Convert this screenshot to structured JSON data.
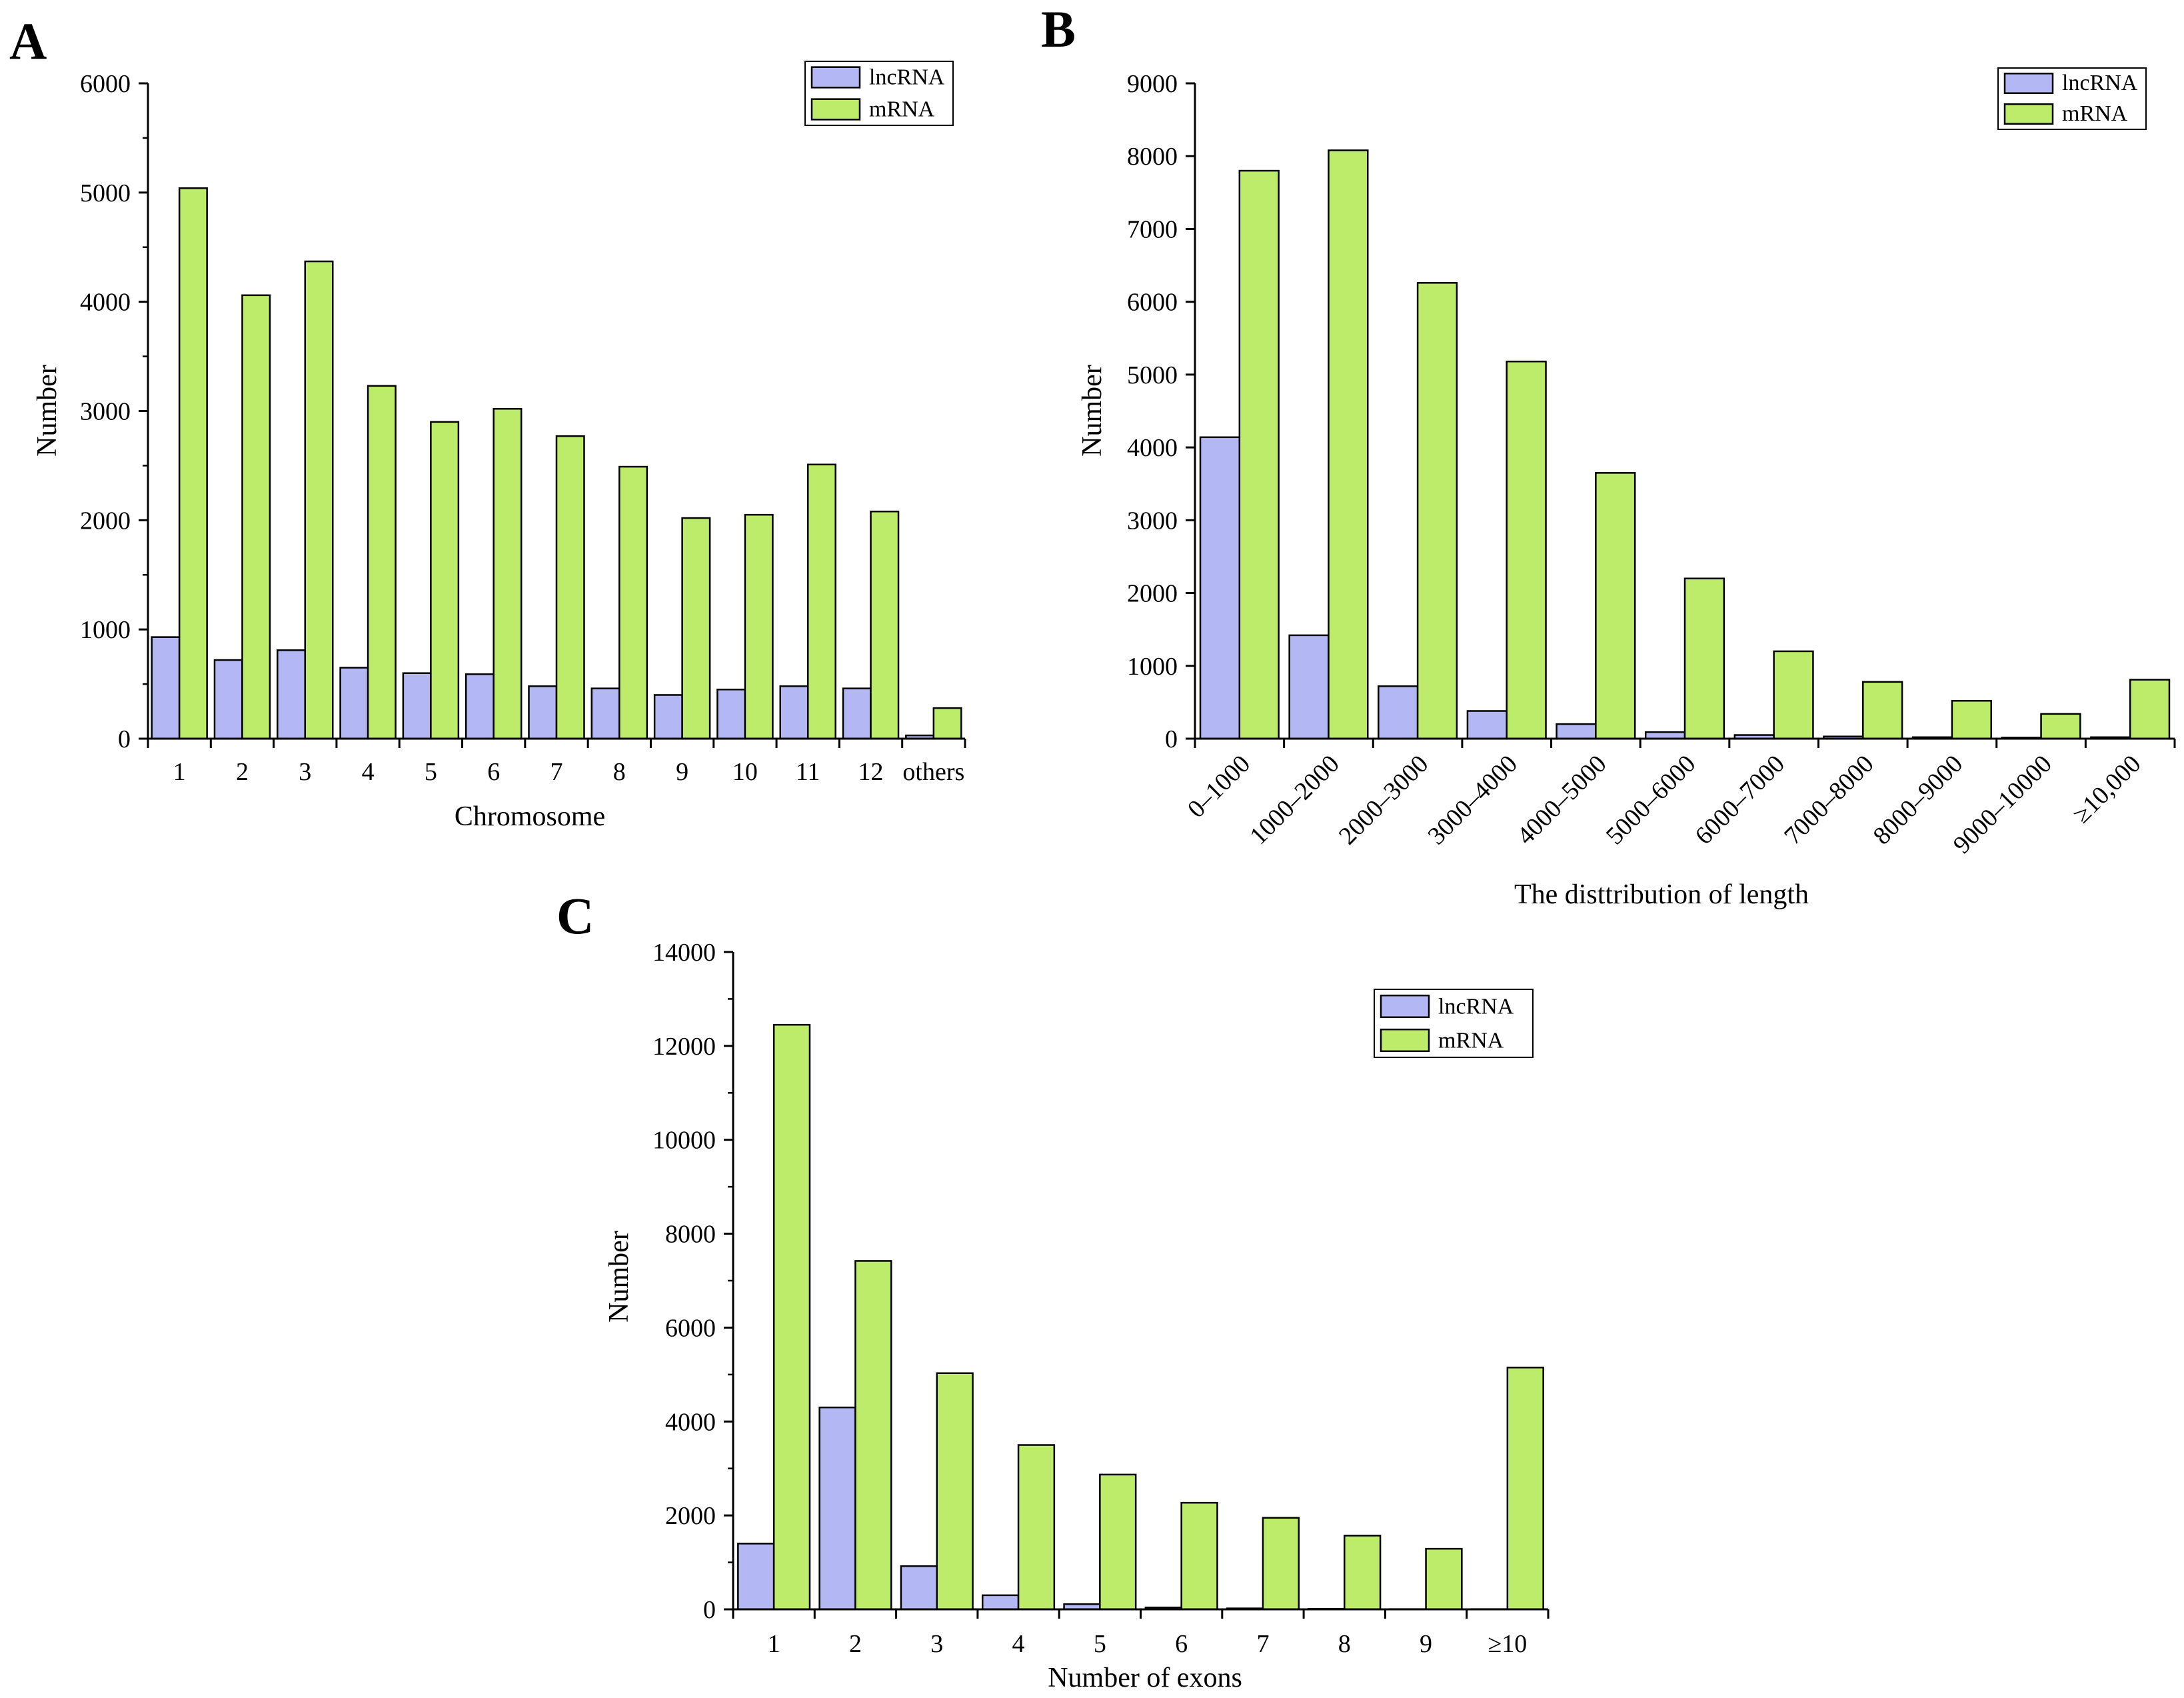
{
  "colors": {
    "lncRNA": "#b3b8f5",
    "mRNA": "#bdec6a",
    "stroke": "#000000"
  },
  "chart_data": [
    {
      "panel": "A",
      "type": "bar",
      "title": "",
      "xlabel": "Chromosome",
      "ylabel": "Number",
      "ylim": [
        0,
        6000
      ],
      "yticks": [
        0,
        1000,
        2000,
        3000,
        4000,
        5000,
        6000
      ],
      "categories": [
        "1",
        "2",
        "3",
        "4",
        "5",
        "6",
        "7",
        "8",
        "9",
        "10",
        "11",
        "12",
        "others"
      ],
      "series": [
        {
          "name": "lncRNA",
          "values": [
            930,
            720,
            810,
            650,
            600,
            590,
            480,
            460,
            400,
            450,
            480,
            460,
            30
          ]
        },
        {
          "name": "mRNA",
          "values": [
            5040,
            4060,
            4370,
            3230,
            2900,
            3020,
            2770,
            2490,
            2020,
            2050,
            2510,
            2080,
            280
          ]
        }
      ],
      "legend": [
        "lncRNA",
        "mRNA"
      ]
    },
    {
      "panel": "B",
      "type": "bar",
      "title": "",
      "xlabel": "The disttribution of length",
      "ylabel": "Number",
      "ylim": [
        0,
        9000
      ],
      "yticks": [
        0,
        1000,
        2000,
        3000,
        4000,
        5000,
        6000,
        7000,
        8000,
        9000
      ],
      "categories": [
        "0–1000",
        "1000–2000",
        "2000–3000",
        "3000–4000",
        "4000–5000",
        "5000–6000",
        "6000–7000",
        "7000–8000",
        "8000–9000",
        "9000–10000",
        "≥10,000"
      ],
      "series": [
        {
          "name": "lncRNA",
          "values": [
            4140,
            1420,
            720,
            380,
            200,
            90,
            50,
            30,
            20,
            15,
            20
          ]
        },
        {
          "name": "mRNA",
          "values": [
            7800,
            8080,
            6260,
            5180,
            3650,
            2200,
            1200,
            780,
            520,
            340,
            810
          ]
        }
      ],
      "legend": [
        "lncRNA",
        "mRNA"
      ]
    },
    {
      "panel": "C",
      "type": "bar",
      "title": "",
      "xlabel": "Number of exons",
      "ylabel": "Number",
      "ylim": [
        0,
        14000
      ],
      "yticks": [
        0,
        2000,
        4000,
        6000,
        8000,
        10000,
        12000,
        14000
      ],
      "categories": [
        "1",
        "2",
        "3",
        "4",
        "5",
        "6",
        "7",
        "8",
        "9",
        "≥10"
      ],
      "series": [
        {
          "name": "lncRNA",
          "values": [
            1400,
            4300,
            920,
            300,
            110,
            40,
            20,
            10,
            5,
            5
          ]
        },
        {
          "name": "mRNA",
          "values": [
            12450,
            7420,
            5030,
            3500,
            2870,
            2270,
            1950,
            1570,
            1290,
            5150
          ]
        }
      ],
      "legend": [
        "lncRNA",
        "mRNA"
      ]
    }
  ]
}
